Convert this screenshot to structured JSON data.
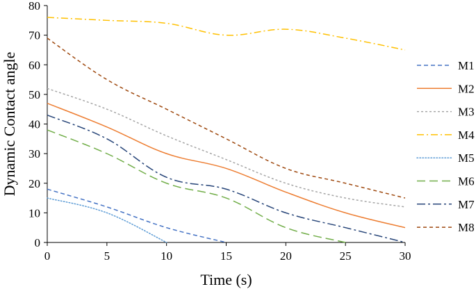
{
  "chart_data": {
    "type": "line",
    "title": "",
    "xlabel": "Time (s)",
    "ylabel": "Dynamic Contact angle",
    "xlim": [
      0,
      30
    ],
    "ylim": [
      0,
      80
    ],
    "xticks": [
      0,
      5,
      10,
      15,
      20,
      25,
      30
    ],
    "yticks": [
      0,
      10,
      20,
      30,
      40,
      50,
      60,
      70,
      80
    ],
    "grid": false,
    "legend_position": "right",
    "series": [
      {
        "name": "M1",
        "color": "#4472C4",
        "dash": "short-dash",
        "x": [
          0,
          5,
          10,
          15
        ],
        "y": [
          18,
          12,
          5,
          0
        ]
      },
      {
        "name": "M2",
        "color": "#ED7D31",
        "dash": "solid",
        "x": [
          0,
          5,
          10,
          15,
          20,
          25,
          30
        ],
        "y": [
          47,
          39,
          30,
          25,
          17,
          10,
          5
        ]
      },
      {
        "name": "M3",
        "color": "#A5A5A5",
        "dash": "dot",
        "x": [
          0,
          5,
          10,
          15,
          20,
          25,
          30
        ],
        "y": [
          52,
          45,
          36,
          28,
          20,
          15,
          12
        ]
      },
      {
        "name": "M4",
        "color": "#FFC000",
        "dash": "dash-dot",
        "x": [
          0,
          5,
          10,
          15,
          20,
          25,
          30
        ],
        "y": [
          76,
          75,
          74,
          70,
          72,
          69,
          65
        ]
      },
      {
        "name": "M5",
        "color": "#5B9BD5",
        "dash": "round-dot",
        "x": [
          0,
          5,
          10
        ],
        "y": [
          15,
          10,
          0
        ]
      },
      {
        "name": "M6",
        "color": "#70AD47",
        "dash": "long-dash",
        "x": [
          0,
          5,
          10,
          15,
          20,
          25
        ],
        "y": [
          38,
          30,
          20,
          15,
          5,
          0
        ]
      },
      {
        "name": "M7",
        "color": "#264478",
        "dash": "long-dash-dot",
        "x": [
          0,
          5,
          10,
          15,
          20,
          25,
          30
        ],
        "y": [
          43,
          35,
          22,
          18,
          10,
          5,
          0
        ]
      },
      {
        "name": "M8",
        "color": "#9E480E",
        "dash": "dash",
        "x": [
          0,
          5,
          10,
          15,
          20,
          25,
          30
        ],
        "y": [
          69,
          55,
          45,
          35,
          25,
          20,
          15
        ]
      }
    ]
  }
}
